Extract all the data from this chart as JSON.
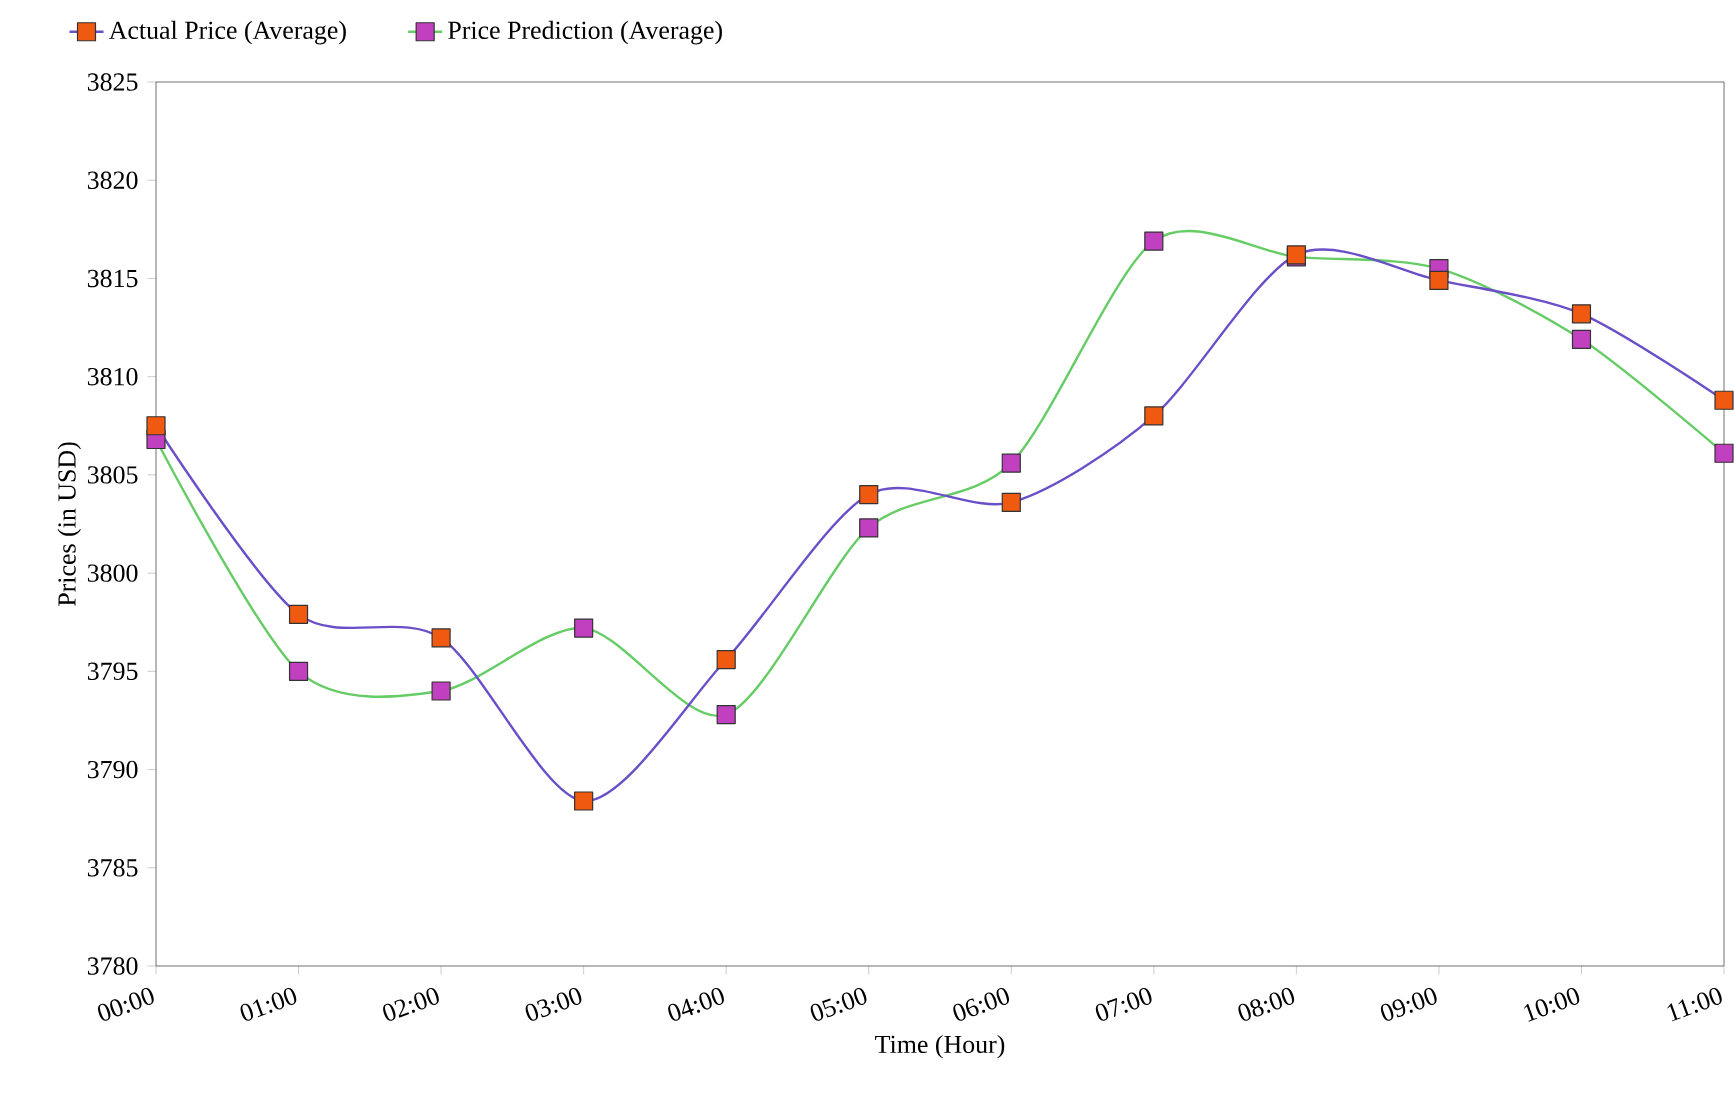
{
  "chart_data": {
    "type": "line",
    "xlabel": "Time (Hour)",
    "ylabel": "Prices (in USD)",
    "categories": [
      "00:00",
      "01:00",
      "02:00",
      "03:00",
      "04:00",
      "05:00",
      "06:00",
      "07:00",
      "08:00",
      "09:00",
      "10:00",
      "11:00"
    ],
    "series": [
      {
        "name": "Actual Price (Average)",
        "color": "#f05a10",
        "values": [
          3807.5,
          3797.9,
          3796.7,
          3788.4,
          3795.6,
          3804.0,
          3803.6,
          3808.0,
          3816.2,
          3814.9,
          3813.2,
          3808.8
        ]
      },
      {
        "name": "Price Prediction (Average)",
        "color": "#c040c0",
        "values": [
          3806.8,
          3795.0,
          3794.0,
          3797.2,
          3792.8,
          3802.3,
          3805.6,
          3816.9,
          3816.1,
          3815.5,
          3811.9,
          3806.1
        ]
      }
    ],
    "ylim": [
      3780,
      3825
    ],
    "yticks": [
      3780,
      3785,
      3790,
      3795,
      3800,
      3805,
      3810,
      3815,
      3820,
      3825
    ],
    "grid": false,
    "legend": "top left",
    "marker": "square",
    "line_style": "solid"
  }
}
